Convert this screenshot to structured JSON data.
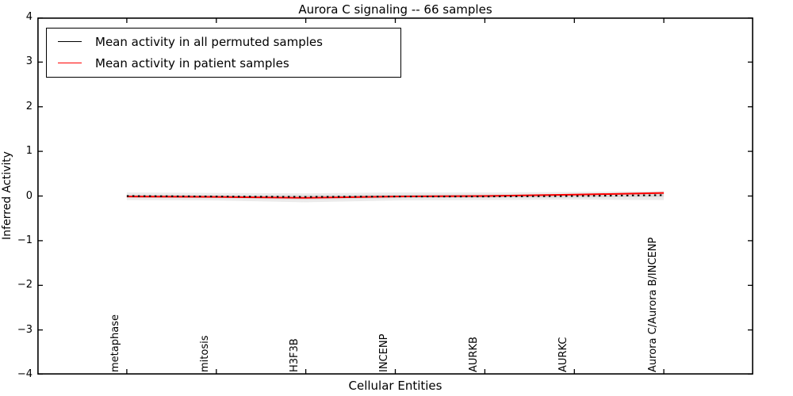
{
  "chart_data": {
    "type": "line",
    "title": "Aurora C signaling -- 66 samples",
    "xlabel": "Cellular Entities",
    "ylabel": "Inferred Activity",
    "categories": [
      "metaphase",
      "mitosis",
      "H3F3B",
      "INCENP",
      "AURKB",
      "AURKC",
      "Aurora C/Aurora B/INCENP"
    ],
    "ylim": [
      -4,
      4
    ],
    "yticks": [
      4,
      3,
      2,
      1,
      0,
      -1,
      -2,
      -3,
      -4
    ],
    "ytick_labels": [
      "4",
      "3",
      "2",
      "1",
      "0",
      "−1",
      "−2",
      "−3",
      "−4"
    ],
    "xlim_units": [
      -1,
      7
    ],
    "grid": false,
    "legend_position": "upper-left",
    "frame_color": "#000000",
    "series": [
      {
        "name": "Mean activity in all permuted samples",
        "color": "#000000",
        "line_style": "dashed",
        "values": [
          0.0,
          -0.01,
          -0.02,
          -0.01,
          -0.01,
          0.0,
          0.02
        ]
      },
      {
        "name": "Mean activity in patient samples",
        "color": "#ff0000",
        "line_style": "solid",
        "values": [
          -0.01,
          -0.02,
          -0.04,
          -0.01,
          0.0,
          0.03,
          0.07
        ]
      }
    ],
    "bands": [
      {
        "name": "permuted-spread-outer",
        "color": "#ebebeb",
        "upper": [
          0.08,
          0.07,
          0.06,
          0.08,
          0.08,
          0.09,
          0.11
        ],
        "lower": [
          -0.09,
          -0.1,
          -0.14,
          -0.1,
          -0.09,
          -0.08,
          -0.09
        ]
      },
      {
        "name": "permuted-spread-inner",
        "color": "#d9d9d9",
        "upper": [
          0.03,
          0.02,
          0.02,
          0.03,
          0.03,
          0.05,
          0.07
        ],
        "lower": [
          -0.04,
          -0.05,
          -0.08,
          -0.05,
          -0.04,
          -0.03,
          -0.02
        ]
      }
    ]
  }
}
